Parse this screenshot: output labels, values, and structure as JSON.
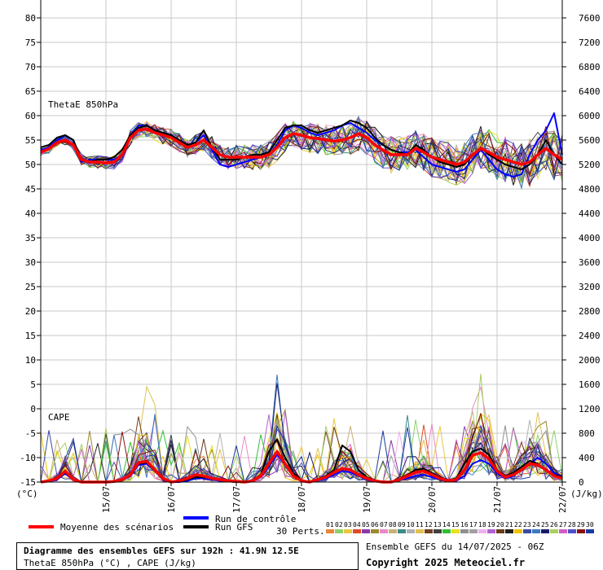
{
  "chart_data": {
    "type": "line",
    "panel_labels": {
      "thetae": "ThetaE 850hPa",
      "cape": "CAPE"
    },
    "left_axis": {
      "unit": "(°C)",
      "ticks": [
        80,
        75,
        70,
        65,
        60,
        55,
        50,
        45,
        40,
        35,
        30,
        25,
        20,
        15,
        10,
        5,
        0,
        -5,
        -10,
        -15
      ]
    },
    "right_axis": {
      "unit": "(J/kg)",
      "ticks": [
        7600,
        7200,
        6800,
        6400,
        6000,
        5600,
        5200,
        4800,
        4400,
        4000,
        3600,
        3200,
        2800,
        2400,
        2000,
        1600,
        1200,
        800,
        400,
        0
      ]
    },
    "x_axis": {
      "ticks": [
        "15/07",
        "16/07",
        "17/07",
        "18/07",
        "19/07",
        "20/07",
        "21/07",
        "22/07"
      ]
    },
    "grid": true,
    "steps": 65,
    "series": {
      "thetae_mean": {
        "name": "Moyenne des scénarios",
        "color": "#ff0000",
        "values": [
          52.5,
          53.2,
          54.5,
          55,
          54,
          51,
          50.5,
          50.5,
          50.3,
          50.5,
          52,
          55.5,
          57,
          57.3,
          56.5,
          56,
          55.5,
          54.5,
          53.5,
          54,
          55,
          53.5,
          52,
          51.5,
          51.5,
          51.5,
          51.5,
          51.5,
          52,
          53.5,
          55.5,
          56.3,
          56,
          55.5,
          55.3,
          55,
          54.8,
          55,
          55.5,
          56.3,
          55.5,
          54,
          53,
          52,
          52,
          52,
          53.3,
          52.5,
          51.5,
          51,
          50.5,
          50,
          50.5,
          52,
          53.3,
          52.5,
          51.5,
          51,
          50.5,
          50,
          50.5,
          52,
          53.3,
          52,
          51
        ]
      },
      "thetae_control": {
        "name": "Run de contrôle",
        "color": "#0000ff",
        "values": [
          53,
          53.5,
          55,
          56,
          55,
          50.5,
          51,
          51,
          51,
          51,
          52,
          56,
          58,
          58,
          57,
          56.5,
          56,
          55,
          54,
          54.5,
          56,
          53,
          50,
          49.5,
          50,
          50.5,
          51,
          51.5,
          52,
          54,
          57,
          58,
          57.5,
          56.5,
          56,
          56.5,
          57,
          58,
          58.5,
          57.5,
          56.5,
          55,
          54,
          53,
          52.5,
          52.5,
          53,
          51.5,
          50,
          49.5,
          49,
          48.5,
          49,
          51,
          53,
          51,
          49,
          48,
          47.5,
          48,
          52,
          55,
          57,
          60.5,
          52
        ]
      },
      "thetae_gfs": {
        "name": "Run GFS",
        "color": "#000000",
        "values": [
          53.5,
          54,
          55.5,
          56,
          55,
          51,
          50.5,
          51,
          51,
          51.5,
          53,
          56,
          57.5,
          58,
          57,
          56.5,
          56,
          55,
          54,
          54.5,
          57,
          53.5,
          51,
          51,
          51,
          51.5,
          52,
          52,
          52.5,
          55,
          57.5,
          58,
          58,
          57,
          56.5,
          57,
          57.5,
          58,
          59,
          58.5,
          57.5,
          55.5,
          54,
          53,
          52.5,
          52,
          54,
          53,
          51.5,
          50.5,
          50,
          49.5,
          50,
          52,
          53.5,
          52,
          51,
          50,
          49.5,
          49,
          50,
          52,
          55,
          52,
          50
        ]
      },
      "cape_mean": {
        "color": "#ff0000",
        "values": [
          0,
          20,
          60,
          180,
          40,
          0,
          0,
          0,
          0,
          10,
          40,
          120,
          320,
          340,
          200,
          60,
          0,
          20,
          60,
          120,
          100,
          60,
          40,
          20,
          10,
          0,
          20,
          100,
          300,
          500,
          300,
          100,
          20,
          0,
          40,
          80,
          160,
          220,
          200,
          120,
          60,
          20,
          0,
          0,
          40,
          100,
          160,
          180,
          120,
          60,
          20,
          40,
          200,
          440,
          480,
          380,
          180,
          80,
          120,
          200,
          300,
          280,
          200,
          100,
          60
        ]
      },
      "cape_control": {
        "color": "#0000ff",
        "values": [
          0,
          10,
          40,
          140,
          30,
          0,
          0,
          0,
          0,
          10,
          40,
          100,
          280,
          300,
          180,
          40,
          0,
          0,
          20,
          60,
          60,
          40,
          20,
          10,
          0,
          0,
          20,
          80,
          260,
          450,
          280,
          90,
          20,
          0,
          30,
          60,
          120,
          180,
          160,
          100,
          40,
          10,
          0,
          0,
          30,
          60,
          100,
          120,
          80,
          40,
          10,
          20,
          100,
          300,
          360,
          300,
          150,
          60,
          100,
          200,
          300,
          400,
          300,
          150,
          80
        ]
      },
      "cape_gfs": {
        "color": "#000000",
        "values": [
          0,
          15,
          50,
          160,
          40,
          0,
          0,
          0,
          0,
          10,
          30,
          120,
          300,
          320,
          180,
          50,
          0,
          10,
          40,
          80,
          80,
          60,
          30,
          10,
          0,
          0,
          30,
          120,
          500,
          700,
          400,
          150,
          30,
          0,
          50,
          100,
          200,
          600,
          500,
          200,
          80,
          30,
          0,
          0,
          50,
          120,
          200,
          220,
          150,
          80,
          30,
          60,
          300,
          500,
          550,
          450,
          200,
          100,
          150,
          250,
          350,
          300,
          200,
          120,
          80
        ]
      }
    },
    "member_colors": [
      "#e8863a",
      "#8ed16a",
      "#e8c840",
      "#e04828",
      "#8a3aa8",
      "#9a8a30",
      "#e88ac8",
      "#c8b07a",
      "#3a8a8a",
      "#b0b0b0",
      "#e0c050",
      "#704020",
      "#404040",
      "#30c030",
      "#e8e020",
      "#909090",
      "#a0a0a0",
      "#f0b0f0",
      "#b060d0",
      "#6a3a1a",
      "#202020",
      "#f0c000",
      "#3a4aa8",
      "#3a7ac0",
      "#1a1a6a",
      "#a8d060",
      "#d060c8",
      "#5050c8",
      "#8a1010",
      "#1a3aa0"
    ],
    "legend": {
      "mean": "Moyenne des scénarios",
      "control": "Run de contrôle",
      "gfs": "Run GFS",
      "perts": "30 Perts.",
      "pert_numbers": [
        "01",
        "02",
        "03",
        "04",
        "05",
        "06",
        "07",
        "08",
        "09",
        "10",
        "11",
        "12",
        "13",
        "14",
        "15",
        "16",
        "17",
        "18",
        "19",
        "20",
        "21",
        "22",
        "23",
        "24",
        "25",
        "26",
        "27",
        "28",
        "29",
        "30"
      ]
    }
  },
  "footer": {
    "title": "Diagramme des ensembles GEFS sur 192h : 41.9N 12.5E",
    "subtitle": "ThetaE 850hPa (°C) , CAPE (J/kg)",
    "run": "Ensemble GEFS du 14/07/2025 - 06Z",
    "copyright": "Copyright 2025 Meteociel.fr"
  }
}
